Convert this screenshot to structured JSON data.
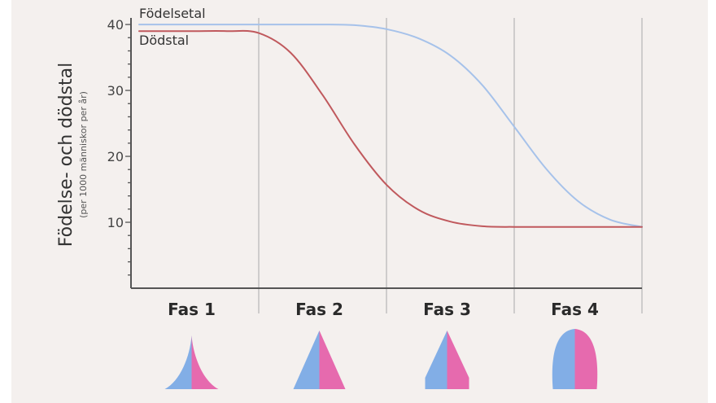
{
  "chart_data": {
    "type": "line",
    "ylabel": "Födelse- och dödstal",
    "ylabel_sub": "(per 1000 människor per år)",
    "ylim": [
      0,
      41
    ],
    "yticks": [
      10,
      20,
      30,
      40
    ],
    "phases": [
      "Fas 1",
      "Fas 2",
      "Fas 3",
      "Fas 4"
    ],
    "series": [
      {
        "name": "Födelsetal",
        "color": "#a6c2ea",
        "x": [
          0,
          0.25,
          0.5,
          0.75,
          1.0,
          1.25,
          1.5,
          1.75,
          2.0,
          2.25,
          2.5,
          2.75,
          3.0,
          3.25,
          3.5,
          3.75,
          4.0
        ],
        "y": [
          40,
          40,
          40,
          40,
          40,
          40,
          40,
          39.9,
          39.3,
          37.9,
          35.3,
          30.8,
          24.5,
          18.1,
          13.2,
          10.4,
          9.3
        ]
      },
      {
        "name": "Dödstal",
        "color": "#c0595d",
        "x": [
          0,
          0.25,
          0.5,
          0.75,
          1.0,
          1.25,
          1.5,
          1.75,
          2.0,
          2.25,
          2.5,
          2.75,
          3.0,
          3.25,
          3.5,
          3.75,
          4.0
        ],
        "y": [
          39,
          39,
          39,
          39,
          38.7,
          35.7,
          29.3,
          21.8,
          15.7,
          11.9,
          10.1,
          9.4,
          9.3,
          9.3,
          9.3,
          9.3,
          9.3
        ]
      }
    ],
    "pyramid_colors": {
      "male": "#82aee6",
      "female": "#e66aae"
    },
    "grid": "vertical phase dividers"
  }
}
